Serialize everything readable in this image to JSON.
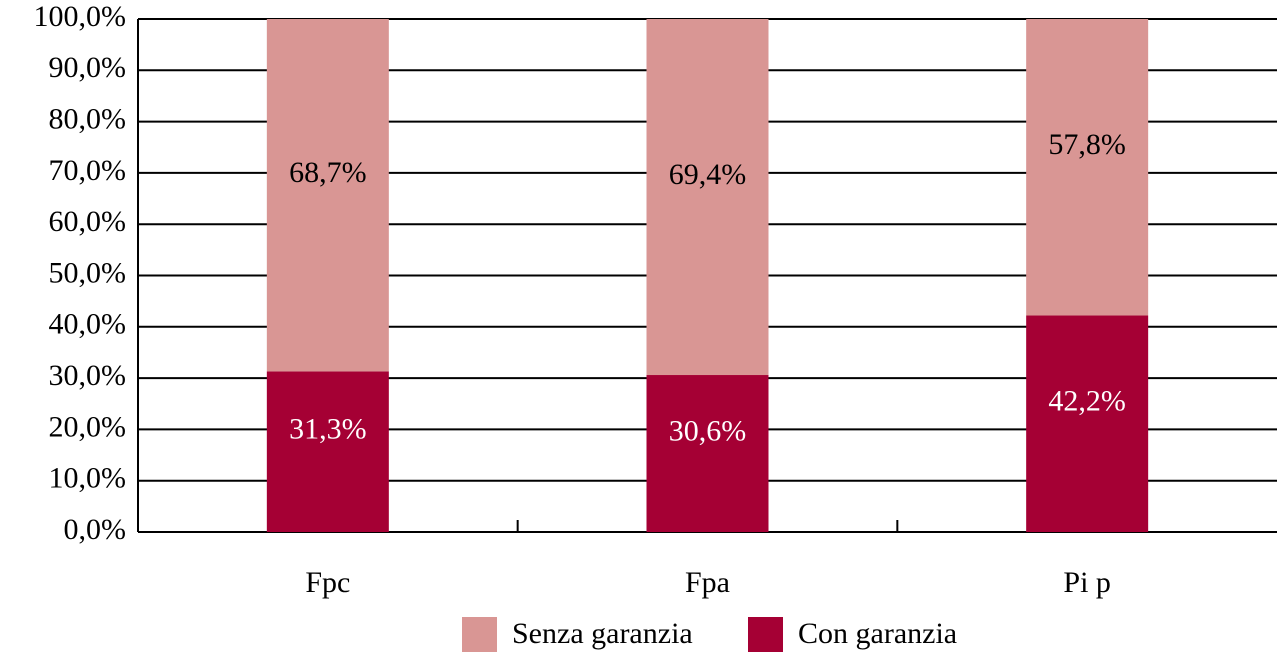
{
  "chart_data": {
    "type": "stacked_bar",
    "categories": [
      "Fpc",
      "Fpa",
      "Pi p"
    ],
    "series": [
      {
        "name": "Senza garanzia",
        "color": "#d99694",
        "values": [
          68.7,
          69.4,
          57.8
        ],
        "value_labels": [
          "68,7%",
          "69,4%",
          "57,8%"
        ]
      },
      {
        "name": "Con garanzia",
        "color": "#a50034",
        "values": [
          31.3,
          30.6,
          42.2
        ],
        "value_labels": [
          "31,3%",
          "30,6%",
          "42,2%"
        ]
      }
    ],
    "ylim": [
      0,
      100
    ],
    "yticks": [
      {
        "value": 0,
        "label": "0,0%"
      },
      {
        "value": 10,
        "label": "10,0%"
      },
      {
        "value": 20,
        "label": "20,0%"
      },
      {
        "value": 30,
        "label": "30,0%"
      },
      {
        "value": 40,
        "label": "40,0%"
      },
      {
        "value": 50,
        "label": "50,0%"
      },
      {
        "value": 60,
        "label": "60,0%"
      },
      {
        "value": 70,
        "label": "70,0%"
      },
      {
        "value": 80,
        "label": "80,0%"
      },
      {
        "value": 90,
        "label": "90,0%"
      },
      {
        "value": 100,
        "label": "100,0%"
      }
    ],
    "grid": true,
    "legend": "bottom"
  }
}
